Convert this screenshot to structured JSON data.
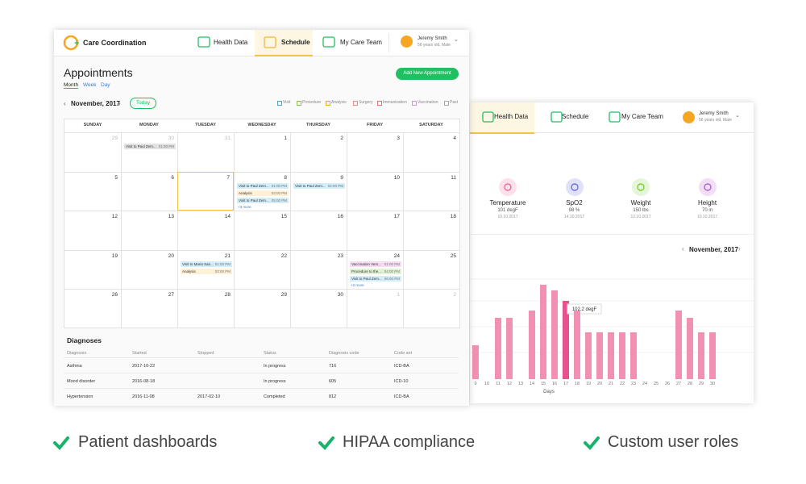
{
  "front": {
    "brand": "Care Coordination",
    "tabs": [
      "Health Data",
      "Schedule",
      "My Care Team"
    ],
    "active_tab": 1,
    "user": {
      "name": "Jeremy Smith",
      "info": "56 years old, Male"
    },
    "title": "Appointments",
    "views": [
      "Month",
      "Week",
      "Day"
    ],
    "add_button": "Add New Appointment",
    "month": "November, 2017",
    "today": "Today",
    "legend": [
      {
        "name": "Visit",
        "color": "#3aa6dd"
      },
      {
        "name": "Procedure",
        "color": "#8bc34a"
      },
      {
        "name": "Analysis",
        "color": "#f5a623"
      },
      {
        "name": "Surgery",
        "color": "#f08a80"
      },
      {
        "name": "Immunization",
        "color": "#e57373"
      },
      {
        "name": "Vaccination",
        "color": "#ce93d8"
      },
      {
        "name": "Past",
        "color": "#aaaaaa"
      }
    ],
    "weekdays": [
      "SUNDAY",
      "MONDAY",
      "TUESDAY",
      "WEDNESDAY",
      "THURSDAY",
      "FRIDAY",
      "SATURDAY"
    ],
    "cells": [
      {
        "day": 29,
        "muted": true
      },
      {
        "day": 30,
        "muted": true,
        "events": [
          {
            "title": "Visit to Paul Zem...",
            "time": "01:00 PM",
            "color": "#e2e2e2"
          }
        ]
      },
      {
        "day": 31,
        "muted": true
      },
      {
        "day": 1
      },
      {
        "day": 2
      },
      {
        "day": 3
      },
      {
        "day": 4
      },
      {
        "day": 5
      },
      {
        "day": 6
      },
      {
        "day": 7,
        "selected": true
      },
      {
        "day": 8,
        "events": [
          {
            "title": "Visit to Paul Zem...",
            "time": "01:00 PM",
            "color": "#d3edf9"
          },
          {
            "title": "Analysis",
            "time": "03:00 PM",
            "color": "#fff0d6"
          },
          {
            "title": "Visit to Paul Zem...",
            "time": "05:00 PM",
            "color": "#d3edf9"
          }
        ],
        "more": "+3 more"
      },
      {
        "day": 9,
        "events": [
          {
            "title": "Visit to Paul Zem...",
            "time": "02:00 PM",
            "color": "#d3edf9"
          }
        ]
      },
      {
        "day": 10
      },
      {
        "day": 11
      },
      {
        "day": 12
      },
      {
        "day": 13
      },
      {
        "day": 14
      },
      {
        "day": 15
      },
      {
        "day": 16
      },
      {
        "day": 17
      },
      {
        "day": 18
      },
      {
        "day": 19
      },
      {
        "day": 20
      },
      {
        "day": 21,
        "events": [
          {
            "title": "Visit to Maria San...",
            "time": "01:00 PM",
            "color": "#d3edf9"
          },
          {
            "title": "Analysis",
            "time": "03:00 PM",
            "color": "#fff0d6"
          }
        ]
      },
      {
        "day": 22
      },
      {
        "day": 23
      },
      {
        "day": 24,
        "events": [
          {
            "title": "Vaccination Vers...",
            "time": "01:00 PM",
            "color": "#f5dcf3"
          },
          {
            "title": "Procedure to the...",
            "time": "04:00 PM",
            "color": "#e0f2d3"
          },
          {
            "title": "Visit to Paul Zem...",
            "time": "06:00 PM",
            "color": "#d3edf9"
          }
        ],
        "more": "+2 more"
      },
      {
        "day": 25
      },
      {
        "day": 26
      },
      {
        "day": 27
      },
      {
        "day": 28
      },
      {
        "day": 29
      },
      {
        "day": 30
      },
      {
        "day": 1,
        "muted": true
      },
      {
        "day": 2,
        "muted": true
      }
    ],
    "diagnoses": {
      "title": "Diagnoses",
      "columns": [
        "Diagnosis",
        "Started",
        "Stopped",
        "Status",
        "Diagnosis code",
        "Code set"
      ],
      "rows": [
        [
          "Asthma",
          "2017-10-22",
          null,
          "In progress",
          716,
          "ICD-BA"
        ],
        [
          "Mood disorder",
          "2016-08-18",
          null,
          "In progress",
          605,
          "ICD-10"
        ],
        [
          "Hypertension",
          "2016-11-08",
          "2017-02-10",
          "Completed",
          812,
          "ICD-BA"
        ]
      ]
    }
  },
  "back": {
    "tabs": [
      "Health Data",
      "Schedule",
      "My Care Team"
    ],
    "active_tab": 0,
    "user": {
      "name": "Jeremy Smith",
      "info": "56 years old, Male"
    },
    "vitals": [
      {
        "name": "Temperature",
        "value": "101 degF",
        "date": "10.10.2017",
        "color": "#f06a9a"
      },
      {
        "name": "SpO2",
        "value": "98 %",
        "date": "14.10.2017",
        "color": "#6a6fd6"
      },
      {
        "name": "Weight",
        "value": "150 lbs",
        "date": "12.10.2017",
        "color": "#7ccf3a"
      },
      {
        "name": "Height",
        "value": "70 in",
        "date": "10.10.2017",
        "color": "#b35fd0"
      }
    ],
    "month": "November, 2017"
  },
  "chart_data": {
    "type": "bar",
    "x_label": "Days",
    "color": "#f290b4",
    "highlight_color": "#e5528e",
    "categories": [
      "9",
      "10",
      "11",
      "12",
      "13",
      "14",
      "15",
      "16",
      "17",
      "18",
      "19",
      "20",
      "21",
      "22",
      "23",
      "24",
      "25",
      "26",
      "27",
      "28",
      "29",
      "30"
    ],
    "values": [
      44.3,
      null,
      80.1,
      80.1,
      null,
      89.6,
      123.3,
      115.9,
      102.2,
      89.6,
      61.1,
      61.1,
      61.1,
      61.1,
      61.1,
      null,
      null,
      null,
      89.6,
      80.1,
      61.1,
      61.1
    ],
    "value_labels": [
      null,
      null,
      null,
      null,
      null,
      null,
      null,
      null,
      "102.2 degF",
      null,
      null,
      null,
      null,
      null,
      null,
      null,
      null,
      null,
      null,
      null,
      null,
      null
    ],
    "ylim": [
      0,
      130
    ]
  },
  "features": [
    "Patient dashboards",
    "HIPAA compliance",
    "Custom user roles"
  ]
}
